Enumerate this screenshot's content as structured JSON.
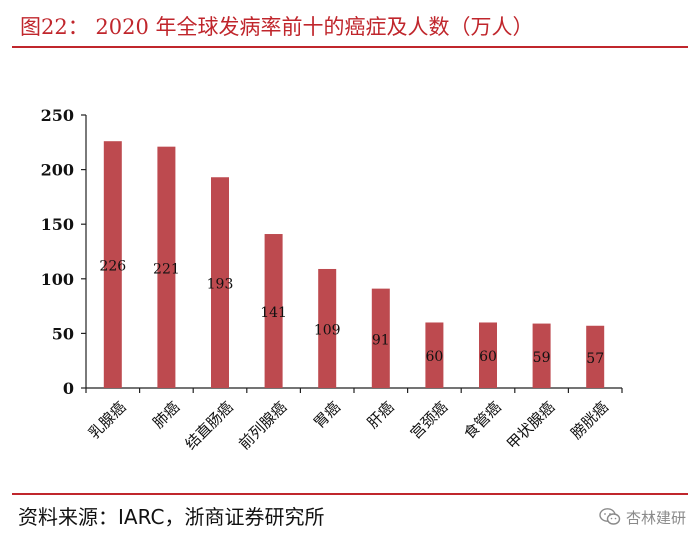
{
  "header": {
    "title": "图22： 2020 年全球发病率前十的癌症及人数（万人）"
  },
  "footer": {
    "source": "资料来源：IARC，浙商证券研究所",
    "watermark_text": "杏林建研",
    "watermark_icon": "wechat-icon"
  },
  "colors": {
    "accent": "#c0262c",
    "bar": "#bd4a4f",
    "axis": "#222222"
  },
  "chart_data": {
    "type": "bar",
    "title": "",
    "xlabel": "",
    "ylabel": "",
    "categories": [
      "乳腺癌",
      "肺癌",
      "结直肠癌",
      "前列腺癌",
      "胃癌",
      "肝癌",
      "宫颈癌",
      "食管癌",
      "甲状腺癌",
      "膀胱癌"
    ],
    "values": [
      226,
      221,
      193,
      141,
      109,
      91,
      60,
      60,
      59,
      57
    ],
    "data_labels": [
      "226",
      "221",
      "193",
      "141",
      "109",
      "91",
      "60",
      "60",
      "59",
      "57"
    ],
    "ylim": [
      0,
      250
    ],
    "yticks": [
      0,
      50,
      100,
      150,
      200,
      250
    ],
    "ytick_labels": [
      "0",
      "50",
      "100",
      "150",
      "200",
      "250"
    ],
    "grid": false,
    "legend": "none"
  }
}
